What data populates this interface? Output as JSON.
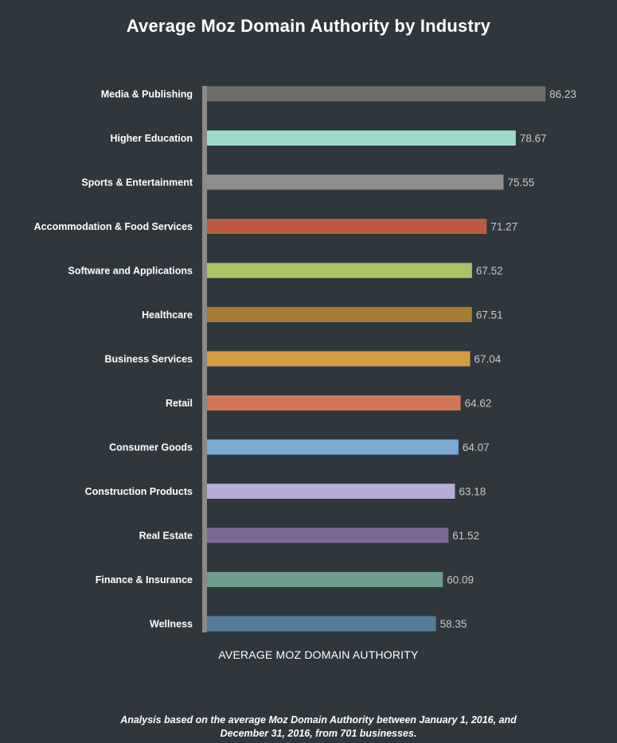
{
  "chart_data": {
    "type": "bar",
    "orientation": "horizontal",
    "title": "Average Moz Domain Authority by Industry",
    "xlabel": "AVERAGE MOZ DOMAIN AUTHORITY",
    "ylabel": "",
    "xlim": [
      0,
      100
    ],
    "grid": false,
    "legend": "none",
    "categories": [
      "Media & Publishing",
      "Higher Education",
      "Sports & Entertainment",
      "Accommodation & Food Services",
      "Software and Applications",
      "Healthcare",
      "Business Services",
      "Retail",
      "Consumer Goods",
      "Construction Products",
      "Real Estate",
      "Finance & Insurance",
      "Wellness"
    ],
    "values": [
      86.23,
      78.67,
      75.55,
      71.27,
      67.52,
      67.51,
      67.04,
      64.62,
      64.07,
      63.18,
      61.52,
      60.09,
      58.35
    ],
    "data_labels": [
      "86.23",
      "78.67",
      "75.55",
      "71.27",
      "67.52",
      "67.51",
      "67.04",
      "64.62",
      "64.07",
      "63.18",
      "61.52",
      "60.09",
      "58.35"
    ],
    "colors": [
      "#6d6e6a",
      "#9edbcb",
      "#8e8e8e",
      "#b95c3f",
      "#a8c466",
      "#a87a34",
      "#d59b42",
      "#d07656",
      "#7aaad1",
      "#b6acd4",
      "#7b6996",
      "#6f9c8c",
      "#567d97"
    ],
    "axis_color": "#8a8a8a",
    "background": "#2f373d",
    "footnote": "Analysis based on the average Moz Domain Authority between January 1, 2016, and December 31, 2016, from 701 businesses."
  }
}
